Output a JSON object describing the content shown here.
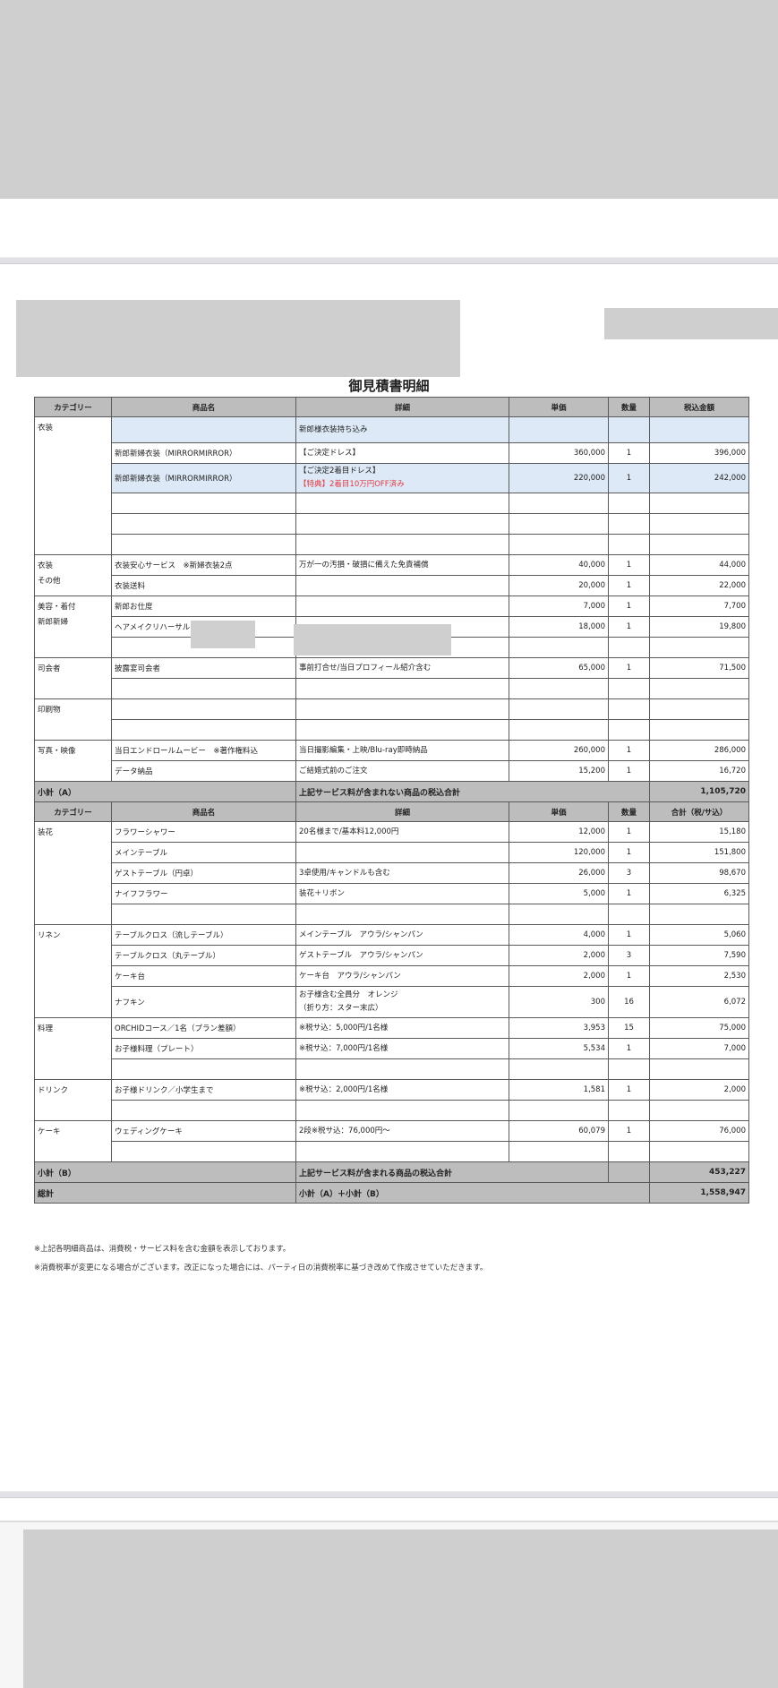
{
  "document": {
    "title": "御見積書明細",
    "table1_headers": [
      "カテゴリー",
      "商品名",
      "詳細",
      "単価",
      "数量",
      "税込金額"
    ],
    "table2_headers": [
      "カテゴリー",
      "商品名",
      "詳細",
      "単価",
      "数量",
      "合計（税/サ込）"
    ],
    "sections1": [
      {
        "category": "衣装",
        "rows": [
          {
            "name": "",
            "detail": "新郎様衣装持ち込み",
            "price": "",
            "qty": "",
            "total": "",
            "highlight": true,
            "tall": 29
          },
          {
            "name": "新郎新婦衣装（MIRRORMIRROR）",
            "detail": "【ご決定ドレス】",
            "price": "360,000",
            "qty": "1",
            "total": "396,000"
          },
          {
            "name": "新郎新婦衣装（MIRRORMIRROR）",
            "detail": "【ご決定2着目ドレス】",
            "detail_red": "【特典】2着目10万円OFF済み",
            "price": "220,000",
            "qty": "1",
            "total": "242,000",
            "highlight": true,
            "tall": 33
          },
          {
            "name": "",
            "detail": "",
            "price": "",
            "qty": "",
            "total": ""
          },
          {
            "name": "",
            "detail": "",
            "price": "",
            "qty": "",
            "total": ""
          },
          {
            "name": "",
            "detail": "",
            "price": "",
            "qty": "",
            "total": ""
          }
        ]
      },
      {
        "category": "衣装\nその他",
        "rows": [
          {
            "name": "衣装安心サービス　※新婦衣装2点",
            "detail": "万が一の汚損・破損に備えた免責補償",
            "price": "40,000",
            "qty": "1",
            "total": "44,000"
          },
          {
            "name": "衣装送料",
            "detail": "",
            "price": "20,000",
            "qty": "1",
            "total": "22,000"
          }
        ]
      },
      {
        "category": "美容・着付\n新郎新婦",
        "rows": [
          {
            "name": "新郎お仕度",
            "detail": "",
            "price": "7,000",
            "qty": "1",
            "total": "7,700"
          },
          {
            "name": "ヘアメイクリハーサル",
            "detail": "",
            "price": "18,000",
            "qty": "1",
            "total": "19,800"
          },
          {
            "name": "",
            "detail": "",
            "price": "",
            "qty": "",
            "total": ""
          }
        ]
      },
      {
        "category": "司会者",
        "rows": [
          {
            "name": "披露宴司会者",
            "detail": "事前打合せ/当日プロフィール紹介含む",
            "price": "65,000",
            "qty": "1",
            "total": "71,500"
          },
          {
            "name": "",
            "detail": "",
            "price": "",
            "qty": "",
            "total": ""
          }
        ]
      },
      {
        "category": "印刷物",
        "rows": [
          {
            "name": "",
            "detail": "",
            "price": "",
            "qty": "",
            "total": ""
          },
          {
            "name": "",
            "detail": "",
            "price": "",
            "qty": "",
            "total": ""
          }
        ]
      },
      {
        "category": "写真・映像",
        "rows": [
          {
            "name": "当日エンドロールムービー　※著作権料込",
            "detail": "当日撮影編集・上映/Blu-ray即時納品",
            "price": "260,000",
            "qty": "1",
            "total": "286,000"
          },
          {
            "name": "データ納品",
            "detail": "ご結婚式前のご注文",
            "price": "15,200",
            "qty": "1",
            "total": "16,720"
          }
        ]
      }
    ],
    "subtotal_a": {
      "label": "小計（A）",
      "detail": "上記サービス料が含まれない商品の税込合計",
      "value": "1,105,720"
    },
    "sections2": [
      {
        "category": "装花",
        "rows": [
          {
            "name": "フラワーシャワー",
            "detail": "20名様まで/基本料12,000円",
            "price": "12,000",
            "qty": "1",
            "total": "15,180"
          },
          {
            "name": "メインテーブル",
            "detail": "",
            "price": "120,000",
            "qty": "1",
            "total": "151,800"
          },
          {
            "name": "ゲストテーブル（円卓）",
            "detail": "3卓使用/キャンドルも含む",
            "price": "26,000",
            "qty": "3",
            "total": "98,670"
          },
          {
            "name": "ナイフフラワー",
            "detail": "装花＋リボン",
            "price": "5,000",
            "qty": "1",
            "total": "6,325"
          },
          {
            "name": "",
            "detail": "",
            "price": "",
            "qty": "",
            "total": ""
          }
        ]
      },
      {
        "category": "リネン",
        "rows": [
          {
            "name": "テーブルクロス（流しテーブル）",
            "detail": "メインテーブル　アウラ/シャンパン",
            "price": "4,000",
            "qty": "1",
            "total": "5,060"
          },
          {
            "name": "テーブルクロス（丸テーブル）",
            "detail": "ゲストテーブル　アウラ/シャンパン",
            "price": "2,000",
            "qty": "3",
            "total": "7,590"
          },
          {
            "name": "ケーキ台",
            "detail": "ケーキ台　アウラ/シャンパン",
            "price": "2,000",
            "qty": "1",
            "total": "2,530"
          },
          {
            "name": "ナフキン",
            "detail": "お子様含む全員分　オレンジ",
            "detail2": "（折り方：スター末広）",
            "price": "300",
            "qty": "16",
            "total": "6,072",
            "tall": 35
          }
        ]
      },
      {
        "category": "料理",
        "rows": [
          {
            "name": "ORCHIDコース／1名（プラン差額）",
            "detail": "※税サ込：5,000円/1名様",
            "price": "3,953",
            "qty": "15",
            "total": "75,000"
          },
          {
            "name": "お子様料理（プレート）",
            "detail": "※税サ込：7,000円/1名様",
            "price": "5,534",
            "qty": "1",
            "total": "7,000"
          },
          {
            "name": "",
            "detail": "",
            "price": "",
            "qty": "",
            "total": ""
          }
        ]
      },
      {
        "category": "ドリンク",
        "rows": [
          {
            "name": "お子様ドリンク／小学生まで",
            "detail": "※税サ込：2,000円/1名様",
            "price": "1,581",
            "qty": "1",
            "total": "2,000"
          },
          {
            "name": "",
            "detail": "",
            "price": "",
            "qty": "",
            "total": ""
          }
        ]
      },
      {
        "category": "ケーキ",
        "rows": [
          {
            "name": "ウェディングケーキ",
            "detail": "2段※税サ込：76,000円～",
            "price": "60,079",
            "qty": "1",
            "total": "76,000"
          },
          {
            "name": "",
            "detail": "",
            "price": "",
            "qty": "",
            "total": ""
          }
        ]
      }
    ],
    "subtotal_b": {
      "label": "小計（B）",
      "detail": "上記サービス料が含まれる商品の税込合計",
      "value": "453,227"
    },
    "grand_total": {
      "label": "総計",
      "detail": "小計（A）＋小計（B）",
      "value": "1,558,947"
    },
    "notes": [
      "※上記各明細商品は、消費税・サービス料を含む金額を表示しております。",
      "※消費税率が変更になる場合がございます。改正になった場合には、パーティ日の消費税率に基づき改めて作成させていただきます。"
    ]
  },
  "colors": {
    "header_bg": "#bdbdbd",
    "highlight_bg": "#dde9f6",
    "red_text": "#e23a44",
    "redaction": "#cfcfcf"
  }
}
